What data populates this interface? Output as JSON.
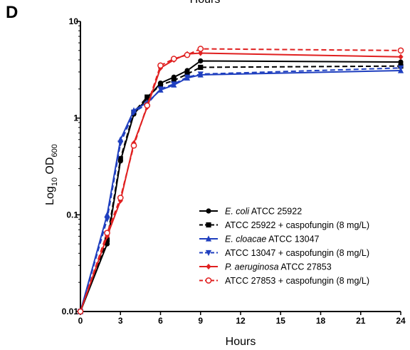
{
  "panel_label": "D",
  "top_text": "Hours",
  "chart_data": {
    "type": "line",
    "xlabel": "Hours",
    "ylabel_main": "Log",
    "ylabel_sub": "10",
    "ylabel_rest": " OD",
    "ylabel_sub2": "600",
    "xlim": [
      0,
      24
    ],
    "ylim": [
      0.01,
      10
    ],
    "yscale": "log",
    "xticks": [
      0,
      3,
      6,
      9,
      12,
      15,
      18,
      21,
      24
    ],
    "yticks": [
      {
        "value": 0.01,
        "label": "0.01"
      },
      {
        "value": 0.1,
        "label": "0.1"
      },
      {
        "value": 1,
        "label": "1"
      },
      {
        "value": 10,
        "label": "10"
      }
    ],
    "legend_position": "bottom-right",
    "x": [
      0,
      2,
      3,
      4,
      5,
      6,
      7,
      8,
      9,
      24
    ],
    "series": [
      {
        "name_italic": "E. coli",
        "name_rest": " ATCC 25922",
        "color": "#000000",
        "dash": "solid",
        "marker": "circle",
        "values": [
          0.01,
          0.05,
          0.36,
          1.1,
          1.6,
          2.3,
          2.65,
          3.1,
          3.9,
          3.8
        ]
      },
      {
        "name_italic": "",
        "name_rest": "ATCC 25922 + caspofungin (8 mg/L)",
        "color": "#000000",
        "dash": "dashed",
        "marker": "square",
        "values": [
          0.01,
          0.055,
          0.38,
          1.15,
          1.65,
          2.2,
          2.45,
          2.85,
          3.35,
          3.45
        ]
      },
      {
        "name_italic": "E. cloacae",
        "name_rest": " ATCC 13047",
        "color": "#1f3fbf",
        "dash": "solid",
        "marker": "triangle-up",
        "values": [
          0.01,
          0.1,
          0.6,
          1.2,
          1.45,
          1.95,
          2.2,
          2.6,
          2.8,
          3.1
        ]
      },
      {
        "name_italic": "",
        "name_rest": "ATCC 13047 + caspofungin (8 mg/L)",
        "color": "#1f3fbf",
        "dash": "dashed",
        "marker": "triangle-down",
        "values": [
          0.01,
          0.09,
          0.55,
          1.15,
          1.4,
          2.0,
          2.25,
          2.65,
          2.85,
          3.3
        ]
      },
      {
        "name_italic": "P. aeruginosa",
        "name_rest": " ATCC 27853",
        "color": "#e02020",
        "dash": "solid",
        "marker": "diamond",
        "values": [
          0.01,
          0.06,
          0.14,
          0.55,
          1.3,
          3.3,
          4.0,
          4.6,
          4.7,
          4.3
        ]
      },
      {
        "name_italic": "",
        "name_rest": "ATCC 27853 + caspofungin (8 mg/L)",
        "color": "#e02020",
        "dash": "dashed",
        "marker": "circle-open",
        "values": [
          0.01,
          0.065,
          0.15,
          0.52,
          1.35,
          3.5,
          4.1,
          4.5,
          5.2,
          5.0
        ]
      }
    ]
  }
}
